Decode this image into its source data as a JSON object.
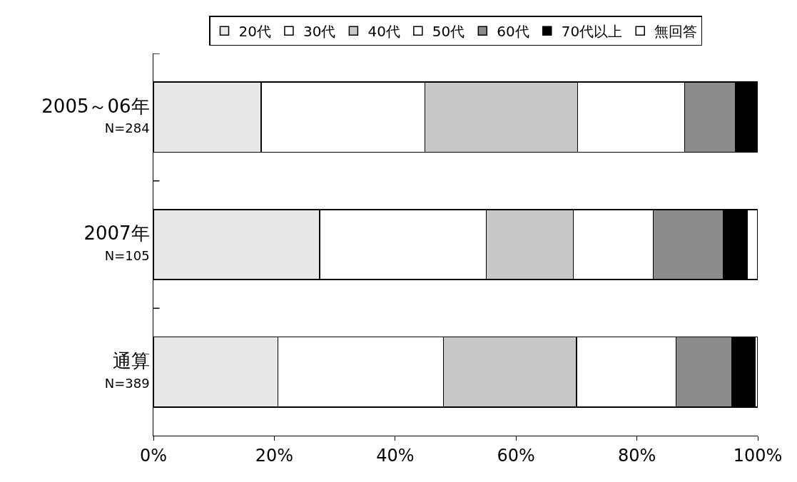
{
  "chart_data": {
    "type": "bar",
    "orientation": "horizontal",
    "stacked": true,
    "categories": [
      "2005～06年\nN=284",
      "2007年\nN=105",
      "通算\nN=389"
    ],
    "series": [
      {
        "name": "20代",
        "color": "#e8e8e8",
        "values": [
          17.8,
          27.5,
          20.6
        ]
      },
      {
        "name": "30代",
        "color": "#ffffff",
        "values": [
          27.1,
          27.6,
          27.4
        ]
      },
      {
        "name": "40代",
        "color": "#c8c8c8",
        "values": [
          25.3,
          14.4,
          22.0
        ]
      },
      {
        "name": "50代",
        "color": "#ffffff",
        "values": [
          17.7,
          13.2,
          16.5
        ]
      },
      {
        "name": "60代",
        "color": "#8c8c8c",
        "values": [
          8.4,
          11.6,
          9.2
        ]
      },
      {
        "name": "70代以上",
        "color": "#000000",
        "values": [
          3.7,
          4.0,
          3.9
        ]
      },
      {
        "name": "無回答",
        "color": "#ffffff",
        "values": [
          null,
          1.7,
          0.4
        ]
      }
    ],
    "xlim": [
      0,
      100
    ],
    "xticks": [
      {
        "value": 0,
        "label": "0%"
      },
      {
        "value": 20,
        "label": "20%"
      },
      {
        "value": 40,
        "label": "40%"
      },
      {
        "value": 60,
        "label": "60%"
      },
      {
        "value": 80,
        "label": "80%"
      },
      {
        "value": 100,
        "label": "100%"
      }
    ],
    "legend": "top"
  }
}
